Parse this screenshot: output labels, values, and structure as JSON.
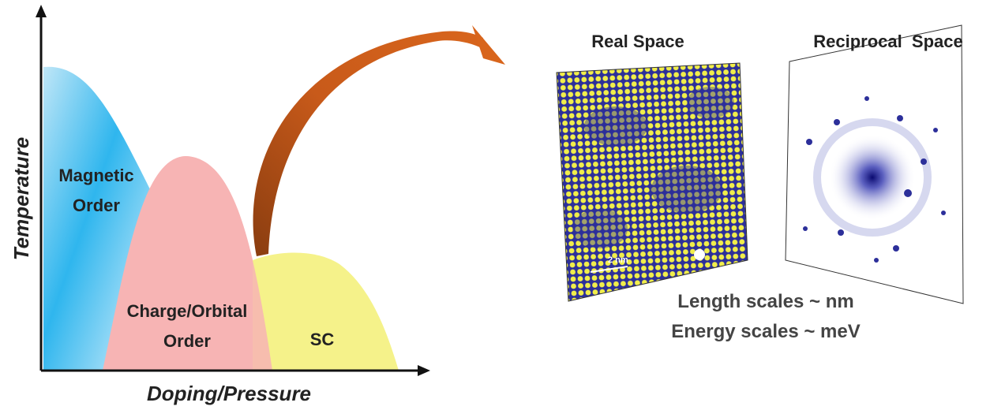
{
  "axes": {
    "y_label": "Temperature",
    "x_label": "Doping/Pressure"
  },
  "regions": [
    {
      "label_lines": [
        "Magnetic",
        "Order"
      ]
    },
    {
      "label_lines": [
        "Charge/Orbital",
        "Order"
      ]
    },
    {
      "label_lines": [
        "SC"
      ]
    }
  ],
  "panels": [
    {
      "title": "Real Space",
      "scale_bar": "2 nm"
    },
    {
      "title": "Reciprocal  Space"
    }
  ],
  "captions": [
    "Length scales ~ nm",
    "Energy scales ~ meV"
  ]
}
